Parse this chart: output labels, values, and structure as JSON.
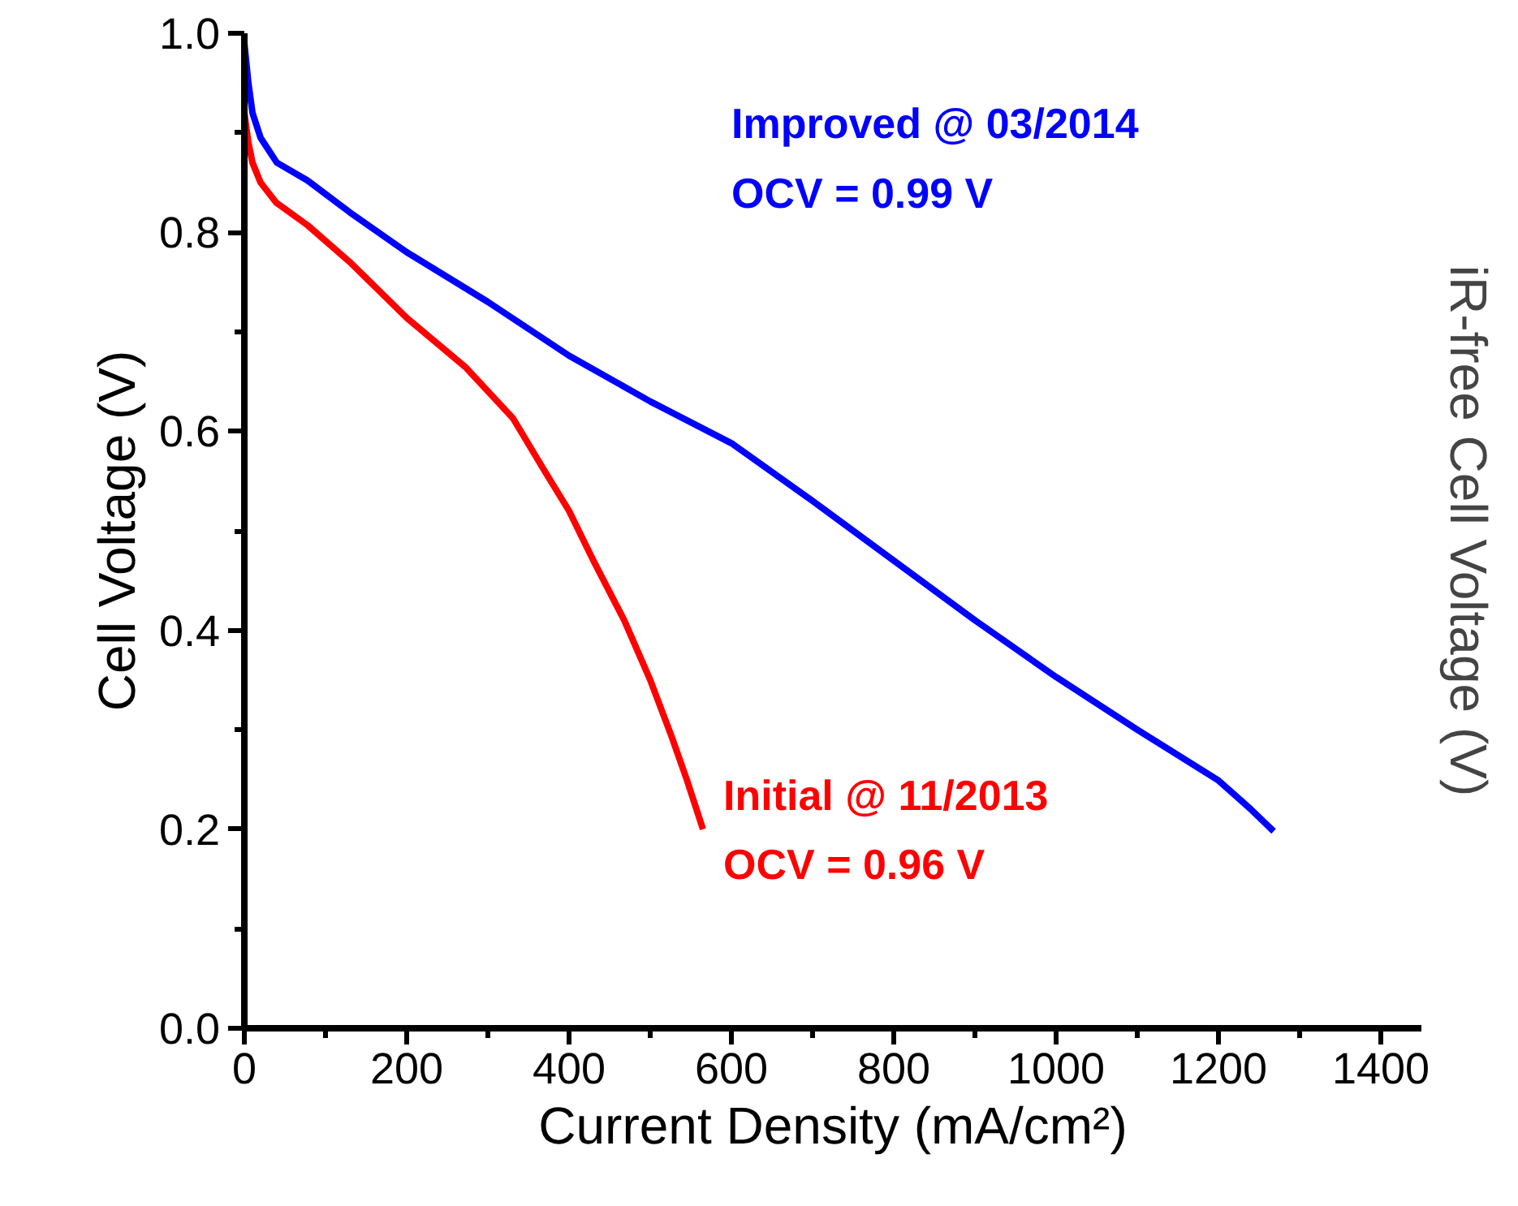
{
  "chart_data": {
    "type": "line",
    "xlabel": "Current Density (mA/cm²)",
    "ylabel": "Cell Voltage (V)",
    "y2label": "iR-free Cell Voltage (V)",
    "xlim": [
      0,
      1450
    ],
    "ylim": [
      0,
      1.0
    ],
    "xticks": [
      0,
      200,
      400,
      600,
      800,
      1000,
      1200,
      1400
    ],
    "yticks": [
      {
        "value": 0,
        "label": "0.0"
      },
      0.2,
      0.4,
      0.6,
      0.8,
      {
        "value": 1,
        "label": "1.0"
      }
    ],
    "grid": false,
    "marker": "none",
    "line_style": "solid",
    "series": [
      {
        "name": "Improved @ 03/2014",
        "color": "#0000ff",
        "x": [
          0,
          5,
          10,
          20,
          40,
          78,
          130,
          200,
          300,
          400,
          500,
          600,
          700,
          800,
          900,
          1000,
          1100,
          1200,
          1240,
          1268
        ],
        "values": [
          0.99,
          0.95,
          0.92,
          0.895,
          0.87,
          0.852,
          0.82,
          0.78,
          0.73,
          0.676,
          0.63,
          0.588,
          0.53,
          0.47,
          0.41,
          0.353,
          0.3,
          0.249,
          0.22,
          0.198
        ]
      },
      {
        "name": "Initial @ 11/2013",
        "color": "#ff0000",
        "x": [
          0,
          5,
          10,
          20,
          39,
          78,
          130,
          200,
          273,
          331,
          370,
          400,
          430,
          468,
          500,
          526,
          545,
          565
        ],
        "values": [
          0.92,
          0.89,
          0.87,
          0.85,
          0.83,
          0.807,
          0.77,
          0.714,
          0.664,
          0.613,
          0.56,
          0.52,
          0.47,
          0.41,
          0.35,
          0.294,
          0.25,
          0.2
        ]
      }
    ],
    "annotations": [
      "OCV = 0.99 V",
      "OCV = 0.96 V"
    ]
  }
}
